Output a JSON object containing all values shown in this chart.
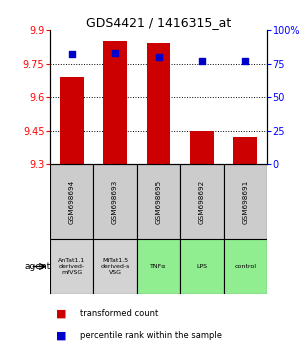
{
  "title": "GDS4421 / 1416315_at",
  "categories": [
    "GSM698694",
    "GSM698693",
    "GSM698695",
    "GSM698692",
    "GSM698691"
  ],
  "agent_labels": [
    "AnTat1.1\nderived-\nmfVSG",
    "MiTat1.5\nderived-s\nVSG",
    "TNFα",
    "LPS",
    "control"
  ],
  "agent_colors": [
    "#d3d3d3",
    "#d3d3d3",
    "#90ee90",
    "#90ee90",
    "#90ee90"
  ],
  "bar_values": [
    9.69,
    9.85,
    9.84,
    9.45,
    9.42
  ],
  "percentile_values": [
    82,
    83,
    80,
    77,
    77
  ],
  "ylim_left": [
    9.3,
    9.9
  ],
  "ylim_right": [
    0,
    100
  ],
  "yticks_left": [
    9.3,
    9.45,
    9.6,
    9.75,
    9.9
  ],
  "ytick_labels_left": [
    "9.3",
    "9.45",
    "9.6",
    "9.75",
    "9.9"
  ],
  "yticks_right": [
    0,
    25,
    50,
    75,
    100
  ],
  "ytick_labels_right": [
    "0",
    "25",
    "50",
    "75",
    "100%"
  ],
  "bar_color": "#cc0000",
  "percentile_color": "#0000cc",
  "cat_bg_color": "#cccccc",
  "figsize": [
    3.03,
    3.54
  ],
  "dpi": 100
}
